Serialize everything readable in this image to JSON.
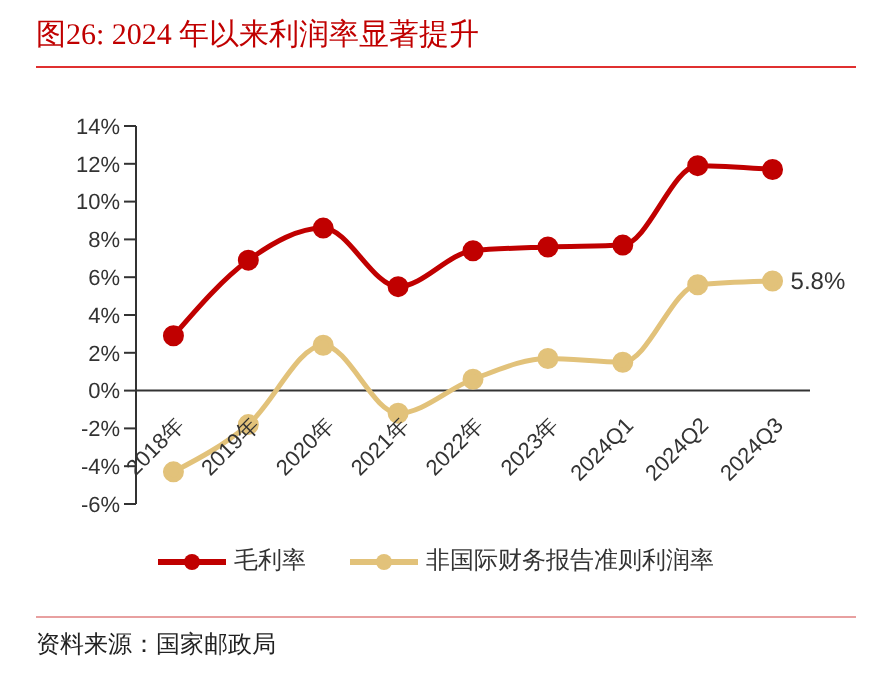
{
  "chart_data": {
    "type": "line",
    "title": "图26:   2024 年以来利润率显著提升",
    "categories": [
      "2018年",
      "2019年",
      "2020年",
      "2021年",
      "2022年",
      "2023年",
      "2024Q1",
      "2024Q2",
      "2024Q3"
    ],
    "series": [
      {
        "name": "毛利率",
        "color": "#c00000",
        "values": [
          2.9,
          6.9,
          8.6,
          5.5,
          7.4,
          7.6,
          7.7,
          11.9,
          11.7
        ]
      },
      {
        "name": "非国际财务报告准则利润率",
        "color": "#e2c27a",
        "values": [
          -4.3,
          -1.8,
          2.4,
          -1.2,
          0.6,
          1.7,
          1.5,
          5.6,
          5.8
        ],
        "value_labels": [
          null,
          null,
          null,
          null,
          null,
          null,
          null,
          null,
          "5.8%"
        ]
      }
    ],
    "ylim": [
      -6,
      14
    ],
    "yticks": [
      {
        "value": -6,
        "label": "-6%"
      },
      {
        "value": -4,
        "label": "-4%"
      },
      {
        "value": -2,
        "label": "-2%"
      },
      {
        "value": 0,
        "label": "0%"
      },
      {
        "value": 2,
        "label": "2%"
      },
      {
        "value": 4,
        "label": "4%"
      },
      {
        "value": 6,
        "label": "6%"
      },
      {
        "value": 8,
        "label": "8%"
      },
      {
        "value": 10,
        "label": "10%"
      },
      {
        "value": 12,
        "label": "12%"
      },
      {
        "value": 14,
        "label": "14%"
      }
    ],
    "grid": false,
    "legend": "bottom",
    "marker": "circle",
    "annotations": [
      "资料来源：国家邮政局"
    ]
  }
}
